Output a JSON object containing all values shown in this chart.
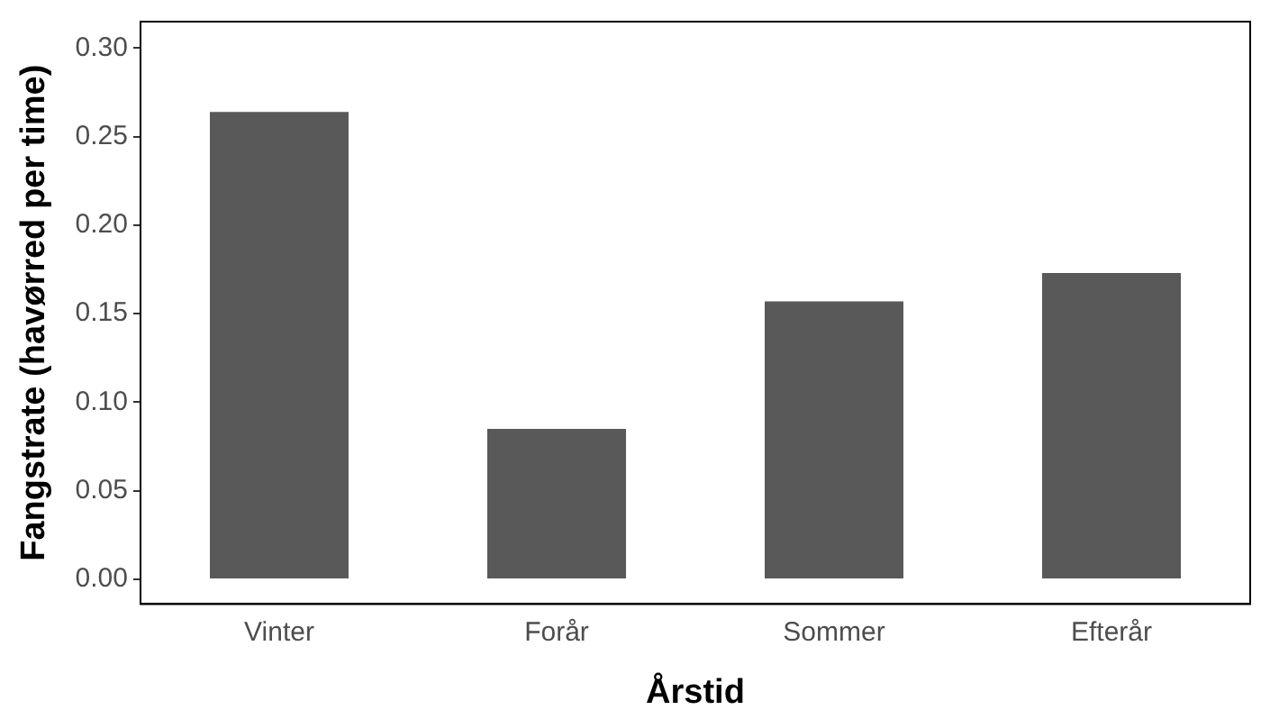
{
  "chart_data": {
    "type": "bar",
    "xlabel": "Årstid",
    "ylabel": "Fangstrate (havørred per time)",
    "categories": [
      "Vinter",
      "Forår",
      "Sommer",
      "Efterår"
    ],
    "values": [
      0.264,
      0.085,
      0.157,
      0.173
    ],
    "color": "#595959",
    "ylim": [
      -0.014,
      0.315
    ],
    "yticks": [
      {
        "value": 0,
        "label": "0.00"
      },
      {
        "value": 0.05,
        "label": "0.05"
      },
      {
        "value": 0.1,
        "label": "0.10"
      },
      {
        "value": 0.15,
        "label": "0.15"
      },
      {
        "value": 0.2,
        "label": "0.20"
      },
      {
        "value": 0.25,
        "label": "0.25"
      },
      {
        "value": 0.3,
        "label": "0.30"
      }
    ],
    "grid": false,
    "legend": false
  }
}
